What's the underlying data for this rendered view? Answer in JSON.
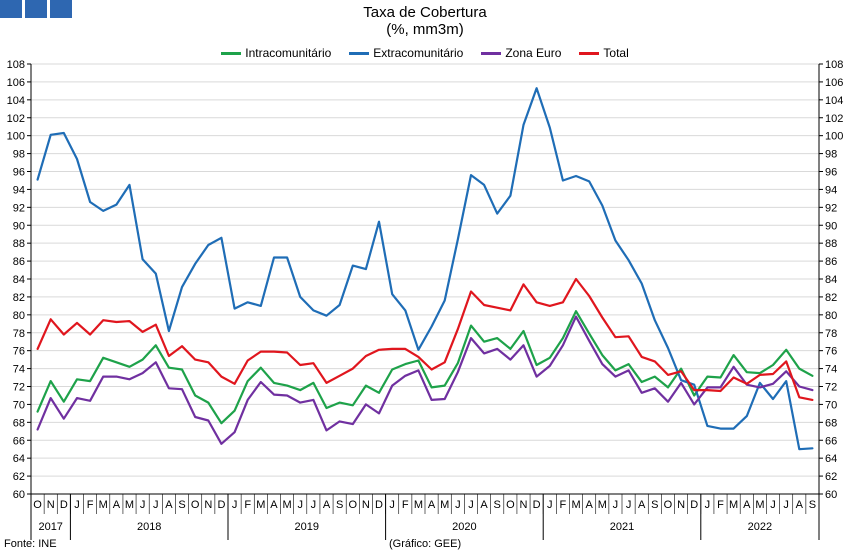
{
  "header": {
    "title": "Taxa de Cobertura",
    "subtitle": "(%, mm3m)"
  },
  "footer": {
    "source": "Fonte: INE",
    "note": "(Gráfico: GEE)"
  },
  "colors": {
    "logo": "#2e67b1",
    "grid": "#d9d9d9",
    "axis": "#000000"
  },
  "chart_data": {
    "type": "line",
    "title": "Taxa de Cobertura",
    "subtitle": "(%, mm3m)",
    "ylim": [
      60,
      108
    ],
    "yticks": [
      60,
      62,
      64,
      66,
      68,
      70,
      72,
      74,
      76,
      78,
      80,
      82,
      84,
      86,
      88,
      90,
      92,
      94,
      96,
      98,
      100,
      102,
      104,
      106,
      108
    ],
    "grid": true,
    "legend_position": "top-center",
    "month_labels": [
      "O",
      "N",
      "D",
      "J",
      "F",
      "M",
      "A",
      "M",
      "J",
      "J",
      "A",
      "S",
      "O",
      "N",
      "D",
      "J",
      "F",
      "M",
      "A",
      "M",
      "J",
      "J",
      "A",
      "S",
      "O",
      "N",
      "D",
      "J",
      "F",
      "M",
      "A",
      "M",
      "J",
      "J",
      "A",
      "S",
      "O",
      "N",
      "D",
      "J",
      "F",
      "M",
      "A",
      "M",
      "J",
      "J",
      "A",
      "S",
      "O",
      "N",
      "D",
      "J",
      "F",
      "M",
      "A",
      "M",
      "J",
      "J",
      "A",
      "S"
    ],
    "x": [
      "2017-10",
      "2017-11",
      "2017-12",
      "2018-01",
      "2018-02",
      "2018-03",
      "2018-04",
      "2018-05",
      "2018-06",
      "2018-07",
      "2018-08",
      "2018-09",
      "2018-10",
      "2018-11",
      "2018-12",
      "2019-01",
      "2019-02",
      "2019-03",
      "2019-04",
      "2019-05",
      "2019-06",
      "2019-07",
      "2019-08",
      "2019-09",
      "2019-10",
      "2019-11",
      "2019-12",
      "2020-01",
      "2020-02",
      "2020-03",
      "2020-04",
      "2020-05",
      "2020-06",
      "2020-07",
      "2020-08",
      "2020-09",
      "2020-10",
      "2020-11",
      "2020-12",
      "2021-01",
      "2021-02",
      "2021-03",
      "2021-04",
      "2021-05",
      "2021-06",
      "2021-07",
      "2021-08",
      "2021-09",
      "2021-10",
      "2021-11",
      "2021-12",
      "2022-01",
      "2022-02",
      "2022-03",
      "2022-04",
      "2022-05",
      "2022-06",
      "2022-07",
      "2022-08",
      "2022-09"
    ],
    "year_labels": [
      {
        "label": "2017",
        "start": 0,
        "end": 2
      },
      {
        "label": "2018",
        "start": 3,
        "end": 14
      },
      {
        "label": "2019",
        "start": 15,
        "end": 26
      },
      {
        "label": "2020",
        "start": 27,
        "end": 38
      },
      {
        "label": "2021",
        "start": 39,
        "end": 50
      },
      {
        "label": "2022",
        "start": 51,
        "end": 59
      }
    ],
    "series": [
      {
        "name": "Intracomunitário",
        "color": "#1ea24a",
        "values": [
          69.2,
          72.6,
          70.3,
          72.8,
          72.6,
          75.2,
          74.7,
          74.2,
          75.0,
          76.6,
          74.1,
          73.9,
          71.0,
          70.2,
          67.9,
          69.3,
          72.6,
          74.1,
          72.4,
          72.1,
          71.6,
          72.4,
          69.6,
          70.2,
          69.9,
          72.1,
          71.3,
          73.9,
          74.5,
          74.9,
          71.9,
          72.1,
          74.6,
          78.8,
          77.0,
          77.4,
          76.2,
          78.2,
          74.4,
          75.2,
          77.4,
          80.4,
          77.9,
          75.5,
          73.8,
          74.5,
          72.5,
          73.1,
          71.9,
          74.0,
          71.0,
          73.1,
          73.0,
          75.5,
          73.6,
          73.5,
          74.4,
          76.1,
          74.0,
          73.2
        ]
      },
      {
        "name": "Extracomunitário",
        "color": "#1f6db6",
        "values": [
          95.1,
          100.1,
          100.3,
          97.4,
          92.6,
          91.6,
          92.3,
          94.5,
          86.2,
          84.6,
          78.2,
          83.1,
          85.7,
          87.8,
          88.6,
          80.7,
          81.4,
          81.0,
          86.4,
          86.4,
          82.0,
          80.5,
          79.9,
          81.1,
          85.5,
          85.1,
          90.4,
          82.3,
          80.5,
          76.1,
          78.7,
          81.6,
          88.4,
          95.6,
          94.5,
          91.3,
          93.3,
          101.2,
          105.3,
          100.9,
          95.0,
          95.5,
          94.9,
          92.2,
          88.3,
          86.1,
          83.5,
          79.4,
          76.3,
          72.7,
          72.2,
          67.6,
          67.3,
          67.3,
          68.7,
          72.4,
          70.6,
          72.6,
          65.0,
          65.1
        ]
      },
      {
        "name": "Zona Euro",
        "color": "#7030a0",
        "values": [
          67.2,
          70.7,
          68.4,
          70.7,
          70.4,
          73.1,
          73.1,
          72.8,
          73.5,
          74.7,
          71.8,
          71.7,
          68.6,
          68.2,
          65.6,
          66.9,
          70.5,
          72.5,
          71.1,
          71.0,
          70.2,
          70.5,
          67.1,
          68.1,
          67.8,
          70.0,
          69.0,
          72.1,
          73.2,
          73.8,
          70.5,
          70.6,
          73.6,
          77.4,
          75.7,
          76.2,
          75.0,
          76.6,
          73.1,
          74.3,
          76.6,
          79.8,
          77.1,
          74.5,
          73.1,
          73.8,
          71.3,
          71.8,
          70.3,
          72.4,
          70.0,
          71.9,
          71.9,
          74.2,
          72.2,
          71.9,
          72.3,
          73.7,
          72.0,
          71.6
        ]
      },
      {
        "name": "Total",
        "color": "#e0161e",
        "values": [
          76.2,
          79.5,
          77.8,
          79.1,
          77.8,
          79.4,
          79.2,
          79.3,
          78.1,
          78.9,
          75.4,
          76.5,
          75.0,
          74.7,
          73.1,
          72.3,
          74.9,
          75.9,
          75.9,
          75.8,
          74.4,
          74.6,
          72.4,
          73.2,
          74.0,
          75.4,
          76.1,
          76.2,
          76.2,
          75.3,
          73.9,
          74.7,
          78.4,
          82.6,
          81.1,
          80.8,
          80.5,
          83.4,
          81.4,
          81.0,
          81.4,
          84.0,
          82.1,
          79.7,
          77.5,
          77.6,
          75.3,
          74.8,
          73.3,
          73.7,
          71.6,
          71.6,
          71.5,
          73.0,
          72.3,
          73.3,
          73.4,
          74.8,
          70.8,
          70.5
        ]
      }
    ]
  }
}
